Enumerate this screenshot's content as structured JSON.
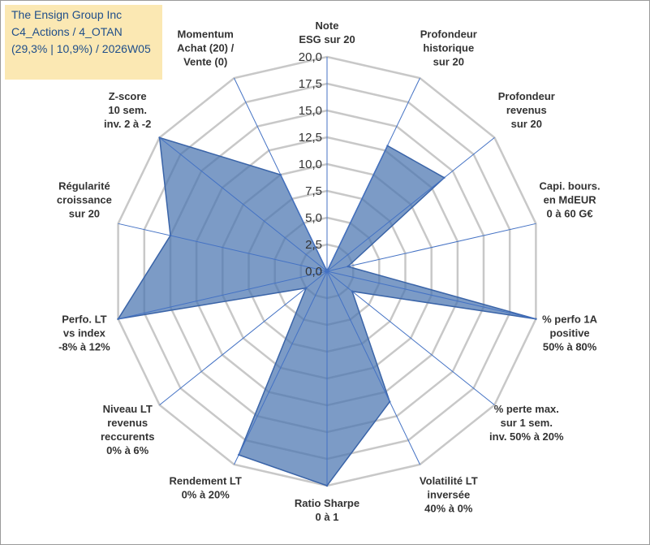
{
  "title_box": {
    "line1": "The Ensign Group Inc",
    "line2": "C4_Actions / 4_OTAN",
    "line3": "(29,3% | 10,9%) / 2026W05",
    "background": "#fbe8b3",
    "text_color": "#1f4e8a"
  },
  "chart_data": {
    "type": "radar",
    "title": "The Ensign Group Inc",
    "rmin": 0,
    "rmax": 20,
    "tick_step": 2.5,
    "tick_labels": [
      "0,0",
      "2,5",
      "5,0",
      "7,5",
      "10,0",
      "12,5",
      "15,0",
      "17,5",
      "20,0"
    ],
    "axes": [
      {
        "label": [
          "Note",
          "ESG sur 20"
        ],
        "value": 0
      },
      {
        "label": [
          "Profondeur",
          "historique",
          "sur 20"
        ],
        "value": 13
      },
      {
        "label": [
          "Profondeur",
          "revenus",
          "sur 20"
        ],
        "value": 14
      },
      {
        "label": [
          "Capi. bours.",
          "en MdEUR",
          "0 à 60 G€"
        ],
        "value": 2
      },
      {
        "label": [
          "% perfo 1A",
          "positive",
          "50% à 80%"
        ],
        "value": 20
      },
      {
        "label": [
          "% perte max.",
          "sur 1 sem.",
          "inv. 50% à 20%"
        ],
        "value": 3
      },
      {
        "label": [
          "Volatilité LT",
          "inversée",
          "40% à 0%"
        ],
        "value": 13.5
      },
      {
        "label": [
          "Ratio Sharpe",
          "0 à 1"
        ],
        "value": 20
      },
      {
        "label": [
          "Rendement LT",
          "0% à 20%"
        ],
        "value": 19
      },
      {
        "label": [
          "Niveau LT",
          "revenus",
          "reccurents",
          "0% à 6%"
        ],
        "value": 2.5
      },
      {
        "label": [
          "Perfo. LT",
          "vs index",
          "-8% à 12%"
        ],
        "value": 20
      },
      {
        "label": [
          "Régularité",
          "croissance",
          "sur 20"
        ],
        "value": 15
      },
      {
        "label": [
          "Z-score",
          "10 sem.",
          "inv. 2 à -2"
        ],
        "value": 20
      },
      {
        "label": [
          "Momentum",
          "Achat (20) /",
          "Vente (0)"
        ],
        "value": 10
      }
    ],
    "series": [
      {
        "name": "The Ensign Group Inc",
        "color": "#4a74b0"
      }
    ],
    "grid": true
  }
}
